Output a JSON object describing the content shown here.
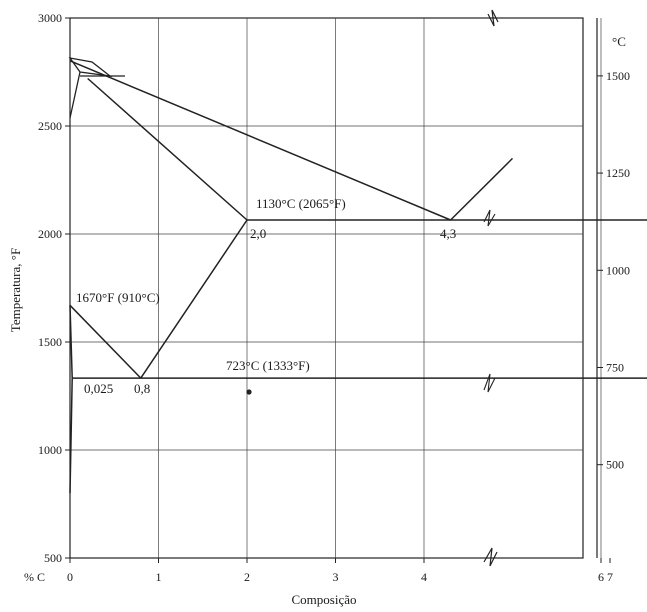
{
  "chart_data": {
    "type": "line",
    "title": "",
    "xlabel": "Composição",
    "ylabel": "Temperatura, °F",
    "y2label": "°C",
    "x_prefix": "% C",
    "xlim": [
      0,
      7
    ],
    "ylim": [
      500,
      3000
    ],
    "x_ticks": [
      "0",
      "1",
      "2",
      "3",
      "4",
      "6",
      "7"
    ],
    "y_ticks": [
      "500",
      "1000",
      "1500",
      "2000",
      "2500",
      "3000"
    ],
    "y2_ticks": [
      "500",
      "750",
      "1000",
      "1250",
      "1500"
    ],
    "annotations": {
      "eutectic": "1130°C (2065°F)",
      "austenite_max": "2,0",
      "eutectic_comp": "4,3",
      "a3": "1670°F (910°C)",
      "eutectoid": "723°C (1333°F)",
      "ferrite_max": "0,025",
      "eutectoid_comp": "0,8"
    },
    "series": [
      {
        "values": [
          [
            0,
            2802
          ],
          [
            4.3,
            2065
          ]
        ]
      },
      {
        "values": [
          [
            4.3,
            2065
          ],
          [
            5.0,
            2350
          ]
        ]
      },
      {
        "values": [
          [
            0.2,
            2720
          ],
          [
            2.0,
            2065
          ]
        ]
      },
      {
        "values": [
          [
            2.0,
            2065
          ],
          [
            0.8,
            1333
          ]
        ]
      },
      {
        "values": [
          [
            0,
            1670
          ],
          [
            0.8,
            1333
          ]
        ]
      },
      {
        "values": [
          [
            0,
            1670
          ],
          [
            0.025,
            1333
          ]
        ]
      },
      {
        "values": [
          [
            0.025,
            1333
          ],
          [
            0,
            800
          ]
        ]
      },
      {
        "values": [
          [
            2.0,
            2065
          ],
          [
            6.67,
            2065
          ]
        ]
      },
      {
        "values": [
          [
            0.025,
            1333
          ],
          [
            6.67,
            1333
          ]
        ]
      }
    ]
  }
}
